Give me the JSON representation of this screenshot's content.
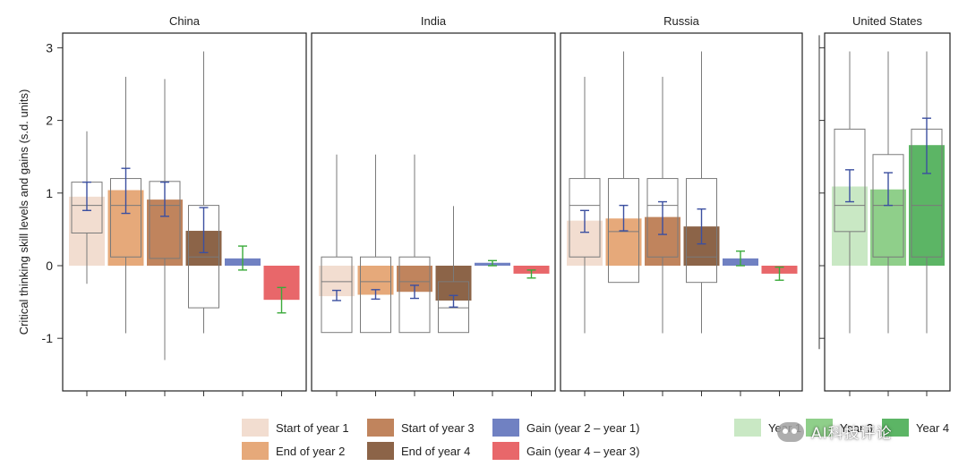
{
  "chart_data": {
    "type": "bar",
    "ylabel": "Critical thinking skill levels and gains (s.d. units)",
    "ylim": [
      -1.7,
      3.2
    ],
    "yticks": [
      -1,
      0,
      1,
      2,
      3
    ],
    "grid": false,
    "legend_position": "bottom",
    "colors": {
      "start_year_1": "#f2ddd0",
      "end_year_2": "#e6a97a",
      "start_year_3": "#c0845d",
      "end_year_4": "#8c6448",
      "gain_y2_y1": "#7081c2",
      "gain_y4_y3": "#e8676a",
      "year_1": "#c9e8c4",
      "year_3": "#8fcf8a",
      "year_4": "#5cb565",
      "errbar_blue": "#3b4fa0",
      "errbar_green": "#3aaa3a",
      "boxplot": "#7a7a7a"
    },
    "panels": [
      {
        "title": "China",
        "bars": [
          {
            "series": "start_year_1",
            "value": 0.95,
            "ci": [
              0.76,
              1.15
            ],
            "box": {
              "q1": 0.45,
              "median": 0.83,
              "q3": 1.15,
              "lo": -0.25,
              "hi": 1.85
            }
          },
          {
            "series": "end_year_2",
            "value": 1.04,
            "ci": [
              0.72,
              1.34
            ],
            "box": {
              "q1": 0.12,
              "median": 0.83,
              "q3": 1.2,
              "lo": -0.93,
              "hi": 2.6
            }
          },
          {
            "series": "start_year_3",
            "value": 0.91,
            "ci": [
              0.68,
              1.15
            ],
            "box": {
              "q1": 0.1,
              "median": 0.83,
              "q3": 1.16,
              "lo": -1.3,
              "hi": 2.57
            }
          },
          {
            "series": "end_year_4",
            "value": 0.48,
            "ci": [
              0.18,
              0.8
            ],
            "box": {
              "q1": -0.58,
              "median": 0.12,
              "q3": 0.83,
              "lo": -0.93,
              "hi": 2.95
            }
          },
          {
            "series": "gain_y2_y1",
            "value": 0.1,
            "ci": [
              -0.06,
              0.27
            ]
          },
          {
            "series": "gain_y4_y3",
            "value": -0.47,
            "ci": [
              -0.65,
              -0.3
            ]
          }
        ]
      },
      {
        "title": "India",
        "bars": [
          {
            "series": "start_year_1",
            "value": -0.42,
            "ci": [
              -0.48,
              -0.34
            ],
            "box": {
              "q1": -0.92,
              "median": -0.22,
              "q3": 0.12,
              "lo": -0.92,
              "hi": 1.53
            }
          },
          {
            "series": "end_year_2",
            "value": -0.4,
            "ci": [
              -0.46,
              -0.33
            ],
            "box": {
              "q1": -0.92,
              "median": -0.22,
              "q3": 0.12,
              "lo": -0.92,
              "hi": 1.53
            }
          },
          {
            "series": "start_year_3",
            "value": -0.36,
            "ci": [
              -0.45,
              -0.27
            ],
            "box": {
              "q1": -0.92,
              "median": -0.22,
              "q3": 0.12,
              "lo": -0.92,
              "hi": 1.53
            }
          },
          {
            "series": "end_year_4",
            "value": -0.48,
            "ci": [
              -0.57,
              -0.41
            ],
            "box": {
              "q1": -0.92,
              "median": -0.58,
              "q3": -0.22,
              "lo": -0.92,
              "hi": 0.82
            }
          },
          {
            "series": "gain_y2_y1",
            "value": 0.04,
            "ci": [
              0.0,
              0.07
            ]
          },
          {
            "series": "gain_y4_y3",
            "value": -0.11,
            "ci": [
              -0.17,
              -0.06
            ]
          }
        ]
      },
      {
        "title": "Russia",
        "bars": [
          {
            "series": "start_year_1",
            "value": 0.62,
            "ci": [
              0.46,
              0.76
            ],
            "box": {
              "q1": 0.12,
              "median": 0.83,
              "q3": 1.2,
              "lo": -0.93,
              "hi": 2.6
            }
          },
          {
            "series": "end_year_2",
            "value": 0.65,
            "ci": [
              0.48,
              0.83
            ],
            "box": {
              "q1": -0.23,
              "median": 0.47,
              "q3": 1.2,
              "lo": -0.23,
              "hi": 2.95
            }
          },
          {
            "series": "start_year_3",
            "value": 0.67,
            "ci": [
              0.43,
              0.88
            ],
            "box": {
              "q1": 0.12,
              "median": 0.83,
              "q3": 1.2,
              "lo": -0.93,
              "hi": 2.6
            }
          },
          {
            "series": "end_year_4",
            "value": 0.54,
            "ci": [
              0.3,
              0.78
            ],
            "box": {
              "q1": -0.23,
              "median": 0.12,
              "q3": 1.2,
              "lo": -0.93,
              "hi": 2.95
            }
          },
          {
            "series": "gain_y2_y1",
            "value": 0.1,
            "ci": [
              0.0,
              0.2
            ]
          },
          {
            "series": "gain_y4_y3",
            "value": -0.11,
            "ci": [
              -0.2,
              -0.02
            ]
          }
        ]
      },
      {
        "title": "United States",
        "bars": [
          {
            "series": "year_1",
            "value": 1.09,
            "ci": [
              0.88,
              1.32
            ],
            "box": {
              "q1": 0.47,
              "median": 0.83,
              "q3": 1.88,
              "lo": -0.93,
              "hi": 2.95
            }
          },
          {
            "series": "year_3",
            "value": 1.05,
            "ci": [
              0.83,
              1.28
            ],
            "box": {
              "q1": 0.12,
              "median": 0.83,
              "q3": 1.53,
              "lo": -0.93,
              "hi": 2.95
            }
          },
          {
            "series": "year_4",
            "value": 1.66,
            "ci": [
              1.27,
              2.03
            ],
            "box": {
              "q1": 0.12,
              "median": 0.83,
              "q3": 1.88,
              "lo": -0.93,
              "hi": 2.95
            }
          }
        ]
      }
    ]
  },
  "legend": {
    "items": [
      {
        "key": "start_year_1",
        "label": "Start of year 1"
      },
      {
        "key": "end_year_2",
        "label": "End of year 2"
      },
      {
        "key": "start_year_3",
        "label": "Start of year 3"
      },
      {
        "key": "end_year_4",
        "label": "End of year 4"
      },
      {
        "key": "gain_y2_y1",
        "label": "Gain (year 2 – year 1)"
      },
      {
        "key": "gain_y4_y3",
        "label": "Gain (year 4 – year 3)"
      },
      {
        "key": "year_1",
        "label": "Year 1"
      },
      {
        "key": "year_3",
        "label": "Year 3"
      },
      {
        "key": "year_4",
        "label": "Year 4"
      }
    ]
  },
  "watermark": {
    "text": "AI科技评论",
    "icon": "wechat-icon"
  }
}
